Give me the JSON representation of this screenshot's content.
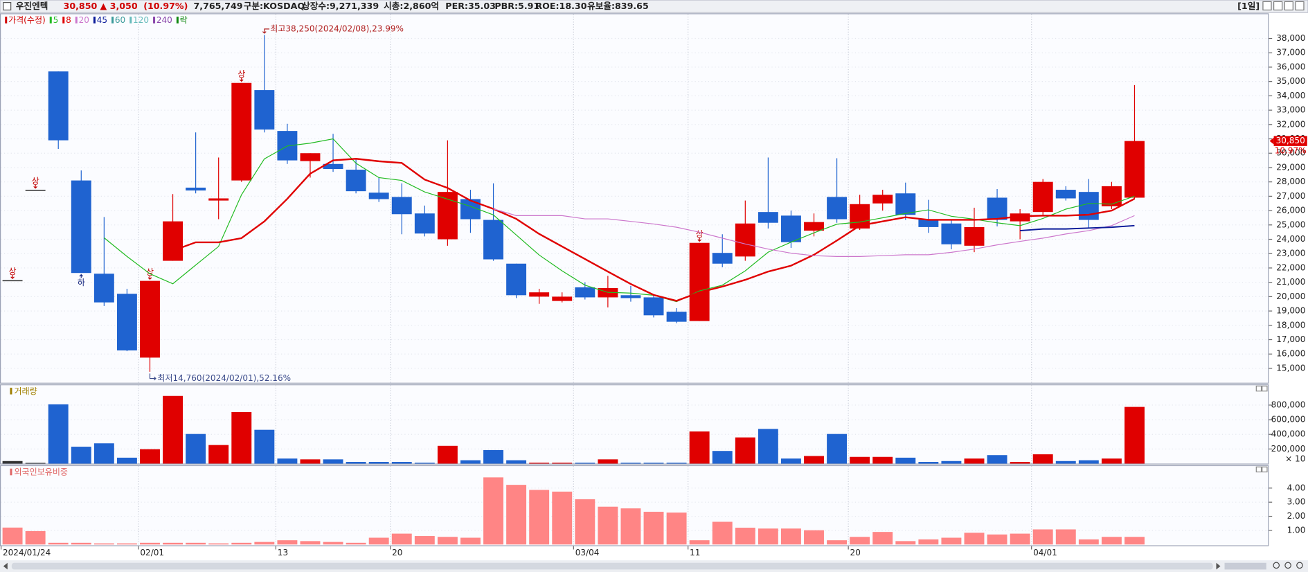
{
  "header": {
    "name": "우진엔텍",
    "price": "30,850",
    "change": "▲ 3,050",
    "change_pct": "(10.97%)",
    "volume": "7,765,749",
    "market": "구분:KOSDAQ",
    "shares": "상장수:9,271,339",
    "market_cap": "시총:2,860억",
    "per": "PER:35.03",
    "pbr": "PBR:5.91",
    "roe": "ROE:18.30",
    "reserve_ratio": "유보율:839.65",
    "period": "[1일]"
  },
  "chart_data": [
    {
      "type": "candlestick",
      "name": "가격(수정)",
      "name_color": "#d00000",
      "categories": [
        "2024/01/24",
        null,
        null,
        null,
        null,
        null,
        "02/01",
        null,
        null,
        null,
        null,
        null,
        "13",
        null,
        null,
        null,
        null,
        "20",
        null,
        null,
        null,
        null,
        null,
        null,
        null,
        "03/04",
        null,
        null,
        null,
        null,
        "11",
        null,
        null,
        null,
        null,
        null,
        null,
        "20",
        null,
        null,
        null,
        null,
        null,
        null,
        null,
        "04/01",
        null,
        null,
        null,
        null
      ],
      "open": [
        21150,
        27450,
        35700,
        28100,
        21600,
        20200,
        15750,
        22500,
        27600,
        26700,
        28100,
        34400,
        31550,
        29450,
        29250,
        28850,
        27250,
        26950,
        25800,
        24000,
        26800,
        25350,
        22300,
        20000,
        19700,
        20650,
        19950,
        20100,
        19950,
        18950,
        18300,
        23050,
        22800,
        25900,
        25650,
        24600,
        26950,
        24750,
        26500,
        27200,
        25400,
        25100,
        23550,
        26900,
        25250,
        25900,
        27450,
        27300,
        26300,
        26900
      ],
      "high": [
        21150,
        27450,
        35700,
        28800,
        25550,
        20550,
        21100,
        27150,
        31450,
        29700,
        34900,
        38250,
        32050,
        30000,
        31350,
        29550,
        28300,
        27900,
        26350,
        30900,
        27450,
        27900,
        22300,
        20550,
        20300,
        21000,
        21450,
        20750,
        20100,
        19200,
        23750,
        24350,
        26700,
        29700,
        26000,
        25800,
        29650,
        27100,
        27450,
        27950,
        26750,
        25400,
        26200,
        27500,
        26100,
        28200,
        27700,
        28200,
        28000,
        34750
      ],
      "low": [
        21150,
        27450,
        30300,
        21650,
        19350,
        16200,
        14760,
        22500,
        27200,
        25400,
        28000,
        31450,
        29250,
        28300,
        28700,
        27200,
        26600,
        24350,
        24200,
        23550,
        24450,
        22500,
        19900,
        19500,
        19600,
        19800,
        19250,
        19650,
        18550,
        18150,
        18300,
        22050,
        22500,
        24750,
        23400,
        24200,
        25150,
        24650,
        26000,
        25350,
        24450,
        23300,
        23100,
        24900,
        24000,
        25700,
        26700,
        24800,
        26100,
        26800
      ],
      "close": [
        21150,
        27450,
        30900,
        21650,
        19600,
        16250,
        21100,
        25250,
        27400,
        26850,
        34900,
        31650,
        29500,
        30000,
        28900,
        27350,
        26800,
        25750,
        24400,
        27300,
        25400,
        22600,
        20100,
        20300,
        20000,
        19950,
        20600,
        19900,
        18700,
        18250,
        23750,
        22300,
        25100,
        25150,
        23800,
        25200,
        25400,
        26450,
        27100,
        25700,
        24850,
        23650,
        24850,
        25350,
        25800,
        28000,
        26850,
        25350,
        27700,
        30850
      ],
      "limit_labels": [
        "상",
        "상",
        null,
        "하",
        null,
        null,
        "상",
        null,
        null,
        null,
        "상",
        null,
        null,
        null,
        null,
        null,
        null,
        null,
        null,
        null,
        null,
        null,
        null,
        null,
        null,
        null,
        null,
        null,
        null,
        null,
        "상",
        null,
        null,
        null,
        null,
        null,
        null,
        null,
        null,
        null,
        null,
        null,
        null,
        null,
        null,
        null,
        null,
        null,
        null,
        null
      ],
      "up_color": "#e00000",
      "down_color": "#1f63d0",
      "flat_color": "#333333",
      "series": [
        {
          "name": "5",
          "color": "#22bb22",
          "values": [
            null,
            null,
            null,
            null,
            24100,
            22800,
            21600,
            20900,
            22200,
            23500,
            27100,
            29600,
            30500,
            30700,
            31000,
            29300,
            28300,
            28100,
            27300,
            26800,
            26300,
            25700,
            24300,
            22900,
            21800,
            20800,
            20300,
            20250,
            20100,
            19650,
            20400,
            20800,
            21800,
            23100,
            23800,
            24450,
            25050,
            25200,
            25500,
            25800,
            26050,
            25600,
            25400,
            25150,
            24950,
            25450,
            26100,
            26500,
            26450,
            27000
          ]
        },
        {
          "name": "8",
          "color": "#e00000",
          "values": [
            null,
            null,
            null,
            null,
            null,
            null,
            null,
            23210,
            23790,
            23790,
            24080,
            25250,
            26820,
            28570,
            29500,
            29610,
            29440,
            29320,
            28160,
            27580,
            26700,
            26120,
            25420,
            24370,
            23500,
            22620,
            21750,
            20880,
            20120,
            19710,
            20300,
            20700,
            21170,
            21750,
            22160,
            22920,
            23910,
            24950,
            25250,
            25540,
            25360,
            25360,
            25360,
            25420,
            25600,
            25650,
            25650,
            25710,
            26000,
            26820
          ]
        },
        {
          "name": "20",
          "color": "#cc77cc",
          "values": [
            null,
            null,
            null,
            null,
            null,
            null,
            null,
            null,
            null,
            null,
            null,
            null,
            null,
            null,
            null,
            null,
            null,
            null,
            null,
            null,
            null,
            26120,
            25650,
            25650,
            25650,
            25420,
            25420,
            25250,
            25070,
            24840,
            24490,
            24080,
            23670,
            23320,
            23030,
            22860,
            22800,
            22800,
            22860,
            22920,
            22920,
            23090,
            23320,
            23610,
            23850,
            24080,
            24370,
            24600,
            24950,
            25650
          ]
        },
        {
          "name": "45",
          "color": "#0a1a99",
          "values": [
            null,
            null,
            null,
            null,
            null,
            null,
            null,
            null,
            null,
            null,
            null,
            null,
            null,
            null,
            null,
            null,
            null,
            null,
            null,
            null,
            null,
            null,
            null,
            null,
            null,
            null,
            null,
            null,
            null,
            null,
            null,
            null,
            null,
            null,
            null,
            null,
            null,
            null,
            null,
            null,
            null,
            null,
            null,
            null,
            24600,
            24720,
            24720,
            24780,
            24840,
            24950
          ]
        }
      ],
      "legend_extra": [
        {
          "name": "60",
          "color": "#3a9a9a"
        },
        {
          "name": "120",
          "color": "#66bbbb"
        },
        {
          "name": "240",
          "color": "#8844aa"
        },
        {
          "name": "락",
          "color": "#118811"
        }
      ],
      "high_note": "최고38,250(2024/02/08),23.99%",
      "low_note": "최저14,760(2024/02/01),52.16%",
      "last_price_label": "30,850",
      "last_pct_label": "10.97%",
      "ylim": [
        14000,
        39750
      ],
      "yticks": [
        {
          "value": 15000,
          "label": "15,000"
        },
        {
          "value": 16000,
          "label": "16,000"
        },
        {
          "value": 17000,
          "label": "17,000"
        },
        {
          "value": 18000,
          "label": "18,000"
        },
        {
          "value": 19000,
          "label": "19,000"
        },
        {
          "value": 20000,
          "label": "20,000"
        },
        {
          "value": 21000,
          "label": "21,000"
        },
        {
          "value": 22000,
          "label": "22,000"
        },
        {
          "value": 23000,
          "label": "23,000"
        },
        {
          "value": 24000,
          "label": "24,000"
        },
        {
          "value": 25000,
          "label": "25,000"
        },
        {
          "value": 26000,
          "label": "26,000"
        },
        {
          "value": 27000,
          "label": "27,000"
        },
        {
          "value": 28000,
          "label": "28,000"
        },
        {
          "value": 29000,
          "label": "29,000"
        },
        {
          "value": 30000,
          "label": "30,000"
        },
        {
          "value": 31000,
          "label": "31,000"
        },
        {
          "value": 32000,
          "label": "32,000"
        },
        {
          "value": 33000,
          "label": "33,000"
        },
        {
          "value": 34000,
          "label": "34,000"
        },
        {
          "value": 35000,
          "label": "35,000"
        },
        {
          "value": 36000,
          "label": "36,000"
        },
        {
          "value": 37000,
          "label": "37,000"
        },
        {
          "value": 38000,
          "label": "38,000"
        }
      ],
      "grid": true
    },
    {
      "type": "bar",
      "title": "거래량",
      "title_color": "#a08000",
      "unit_label": "× 10",
      "values": [
        35000,
        10000,
        810000,
        231000,
        277000,
        81000,
        197000,
        925000,
        405000,
        254000,
        705000,
        462000,
        69000,
        58000,
        58000,
        23000,
        23000,
        23000,
        12000,
        243000,
        46000,
        185000,
        46000,
        12000,
        12000,
        12000,
        58000,
        12000,
        12000,
        12000,
        439000,
        173000,
        358000,
        474000,
        69000,
        104000,
        405000,
        92000,
        92000,
        81000,
        23000,
        35000,
        69000,
        116000,
        23000,
        127000,
        35000,
        46000,
        69000,
        775000
      ],
      "ylim": [
        0,
        1060000
      ],
      "yticks": [
        {
          "value": 200000,
          "label": "200,000"
        },
        {
          "value": 400000,
          "label": "400,000"
        },
        {
          "value": 600000,
          "label": "600,000"
        },
        {
          "value": 800000,
          "label": "800,000"
        }
      ],
      "grid": true
    },
    {
      "type": "bar",
      "title": "외국인보유비중",
      "title_color": "#e06666",
      "color": "#ff8585",
      "values": [
        1.2,
        0.95,
        0.12,
        0.12,
        0.08,
        0.08,
        0.12,
        0.12,
        0.12,
        0.08,
        0.12,
        0.18,
        0.3,
        0.24,
        0.18,
        0.12,
        0.48,
        0.77,
        0.6,
        0.54,
        0.48,
        4.76,
        4.23,
        3.87,
        3.75,
        3.21,
        2.68,
        2.56,
        2.32,
        2.26,
        0.3,
        1.61,
        1.19,
        1.13,
        1.13,
        1.01,
        0.3,
        0.54,
        0.89,
        0.24,
        0.36,
        0.48,
        0.83,
        0.71,
        0.77,
        1.07,
        1.07,
        0.36,
        0.54,
        0.54
      ],
      "ylim": [
        0,
        5.5
      ],
      "yticks": [
        {
          "value": 1,
          "label": "1.00"
        },
        {
          "value": 2,
          "label": "2.00"
        },
        {
          "value": 3,
          "label": "3.00"
        },
        {
          "value": 4,
          "label": "4.00"
        }
      ],
      "grid": true
    }
  ]
}
